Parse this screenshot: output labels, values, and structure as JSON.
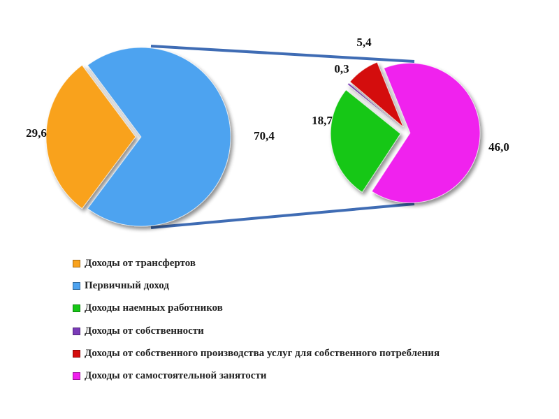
{
  "chart_data": {
    "type": "pie",
    "main_pie": {
      "slices": [
        {
          "label": "Доходы от трансфертов",
          "value": 29.6,
          "value_label": "29,6",
          "color": "#F9A21C"
        },
        {
          "label": "Первичный доход",
          "value": 70.4,
          "value_label": "70,4",
          "color": "#4DA3F0"
        }
      ]
    },
    "breakdown_pie": {
      "of_slice": "Первичный доход",
      "slices": [
        {
          "label": "Доходы наемных работников",
          "value": 18.7,
          "value_label": "18,7",
          "color": "#16C716"
        },
        {
          "label": "Доходы от собственности",
          "value": 0.3,
          "value_label": "0,3",
          "color": "#7A3BB8"
        },
        {
          "label": "Доходы от собственного производства услуг для собственного потребления",
          "value": 5.4,
          "value_label": "5,4",
          "color": "#D40D0D"
        },
        {
          "label": "Доходы от самостоятельной занятости",
          "value": 46.0,
          "value_label": "46,0",
          "color": "#F020EE"
        }
      ]
    },
    "legend": {
      "position": "bottom-left",
      "entries": [
        {
          "label": "Доходы от трансфертов",
          "color": "#F9A21C"
        },
        {
          "label": "Первичный доход",
          "color": "#4DA3F0"
        },
        {
          "label": "Доходы наемных работников",
          "color": "#16C716"
        },
        {
          "label": "Доходы от собственности",
          "color": "#7A3BB8"
        },
        {
          "label": "Доходы от собственного производства услуг для собственного потребления",
          "color": "#D40D0D"
        },
        {
          "label": "Доходы от самостоятельной занятости",
          "color": "#F020EE"
        }
      ]
    },
    "connector_color": "#3F6CB4"
  }
}
